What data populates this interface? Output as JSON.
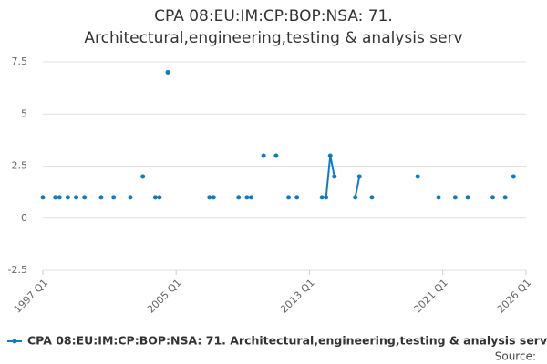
{
  "chart_data": {
    "type": "line",
    "title": "CPA 08:EU:IM:CP:BOP:NSA: 71. Architectural,engineering,testing & analysis serv",
    "x": [
      1997,
      1997.25,
      1997.75,
      1998,
      1998.25,
      1998.5,
      1998.75,
      1999,
      1999.25,
      1999.5,
      1999.75,
      2000.5,
      2000.75,
      2001.25,
      2001.5,
      2002.25,
      2002.5,
      2003,
      2003.25,
      2003.75,
      2004,
      2004.25,
      2004.5,
      2004.75,
      2007,
      2007.25,
      2007.5,
      2008.75,
      2009,
      2009.25,
      2009.5,
      2009.75,
      2010.25,
      2010.5,
      2011,
      2011.25,
      2011.75,
      2012,
      2012.25,
      2012.5,
      2013.75,
      2014,
      2014.25,
      2014.5,
      2014.75,
      2015.75,
      2016,
      2016.25,
      2016.75,
      2017,
      2019.5,
      2019.75,
      2020.75,
      2021,
      2021.75,
      2022,
      2022.5,
      2022.75,
      2024,
      2024.25,
      2024.75,
      2025,
      2025.25
    ],
    "series": [
      {
        "name": "CPA 08:EU:IM:CP:BOP:NSA: 71. Architectural,engineering,testing & analysis serv",
        "color": "#0f7cc0",
        "values": [
          1,
          null,
          1,
          1,
          null,
          1,
          null,
          1,
          null,
          1,
          null,
          1,
          null,
          1,
          null,
          1,
          null,
          2,
          null,
          1,
          1,
          null,
          7,
          null,
          1,
          1,
          null,
          1,
          null,
          1,
          1,
          null,
          3,
          null,
          3,
          null,
          1,
          null,
          1,
          null,
          1,
          1,
          3,
          2,
          null,
          1,
          2,
          null,
          1,
          null,
          2,
          null,
          1,
          null,
          1,
          null,
          1,
          null,
          1,
          null,
          1,
          null,
          2
        ]
      }
    ],
    "xlim": [
      1997,
      2026
    ],
    "xticks": [
      {
        "value": 1997,
        "label": "1997 Q1"
      },
      {
        "value": 2005,
        "label": "2005 Q1"
      },
      {
        "value": 2013,
        "label": "2013 Q1"
      },
      {
        "value": 2021,
        "label": "2021 Q1"
      },
      {
        "value": 2026,
        "label": "2026 Q1"
      }
    ],
    "ylim": [
      -2.5,
      7.5
    ],
    "yticks": [
      -2.5,
      0,
      2.5,
      5,
      7.5
    ],
    "grid": true,
    "source": "Source:"
  }
}
